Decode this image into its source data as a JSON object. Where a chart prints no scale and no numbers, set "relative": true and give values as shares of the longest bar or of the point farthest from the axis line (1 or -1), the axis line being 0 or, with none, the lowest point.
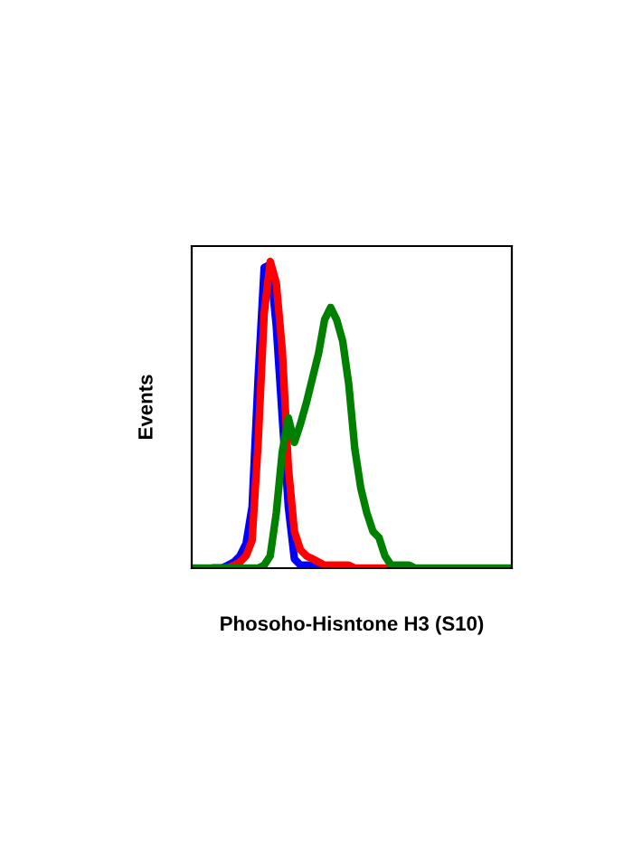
{
  "chart_data": {
    "type": "line",
    "relative": true,
    "xlabel": "Phosoho-Hisntone H3 (S10)",
    "ylabel": "Events",
    "grid": false,
    "legend": false,
    "marker": "none",
    "line_style": "solid",
    "categories": [
      null,
      null,
      null,
      null,
      null,
      null,
      null,
      null,
      null,
      null,
      null,
      null,
      null,
      null,
      null,
      null,
      null,
      null,
      null,
      null,
      null,
      null,
      null,
      null,
      null,
      null,
      null,
      null,
      null,
      null,
      null,
      null,
      null,
      null,
      null,
      null,
      null,
      null,
      null,
      null,
      null,
      null,
      null,
      null,
      null,
      null,
      null,
      null,
      null,
      null,
      null,
      null,
      null,
      null
    ],
    "series": [
      {
        "color": "#0000ff",
        "values": [
          null,
          null,
          null,
          null,
          0,
          0,
          0.01,
          0.02,
          0.04,
          0.08,
          0.2,
          0.62,
          0.98,
          0.99,
          0.79,
          0.49,
          0.2,
          0.03,
          0.01,
          0.01,
          0.01,
          0.01,
          0,
          null,
          null,
          null,
          null,
          null,
          null,
          null,
          null,
          null,
          null,
          null,
          null,
          null,
          null,
          null,
          null,
          null,
          null,
          null,
          null,
          null,
          null,
          null,
          null,
          null,
          null,
          null,
          null,
          null,
          null,
          null
        ]
      },
      {
        "color": "#ff0000",
        "values": [
          null,
          null,
          null,
          null,
          0,
          0,
          0,
          0.01,
          0.02,
          0.04,
          0.09,
          0.41,
          0.83,
          1.0,
          0.93,
          0.71,
          0.33,
          0.12,
          0.06,
          0.04,
          0.03,
          0.02,
          0.01,
          0.01,
          0.01,
          0.01,
          0.01,
          0,
          0,
          0,
          0,
          0,
          0,
          0,
          0,
          0,
          null,
          null,
          null,
          null,
          null,
          null,
          null,
          null,
          null,
          null,
          null,
          null,
          null,
          null,
          null,
          null,
          null,
          null
        ]
      },
      {
        "color": "#008000",
        "values": [
          0,
          0,
          0,
          0,
          0,
          0,
          0,
          0,
          0,
          0,
          0,
          0,
          0.01,
          0.04,
          0.18,
          0.38,
          0.49,
          0.41,
          0.47,
          0.54,
          0.62,
          0.7,
          0.81,
          0.85,
          0.81,
          0.74,
          0.6,
          0.39,
          0.26,
          0.18,
          0.12,
          0.1,
          0.04,
          0.01,
          0.01,
          0.01,
          0.01,
          0,
          0,
          0,
          0,
          0,
          0,
          0,
          0,
          0,
          0,
          0,
          0,
          0,
          0,
          0,
          0,
          0
        ]
      }
    ]
  }
}
